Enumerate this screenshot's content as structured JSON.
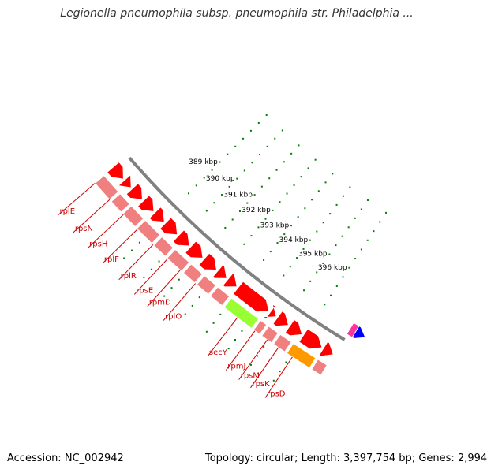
{
  "title": "Legionella pneumophila subsp. pneumophila str. Philadelphia ...",
  "footer": {
    "accession_label": "Accession:",
    "accession": "NC_002942",
    "topology_label": "Topology:",
    "topology": "circular",
    "length_label": "Length:",
    "length": "3,397,754 bp",
    "genes_label": "Genes:",
    "genes": "2,994"
  },
  "scale": {
    "unit": "kbp",
    "ticks": [
      {
        "value": 389,
        "label": "389 kbp"
      },
      {
        "value": 390,
        "label": "390 kbp"
      },
      {
        "value": 391,
        "label": "391 kbp"
      },
      {
        "value": 392,
        "label": "392 kbp"
      },
      {
        "value": 393,
        "label": "393 kbp"
      },
      {
        "value": 394,
        "label": "394 kbp"
      },
      {
        "value": 395,
        "label": "395 kbp"
      },
      {
        "value": 396,
        "label": "396 kbp"
      }
    ]
  },
  "gene_labels": [
    "rplE",
    "rpsN",
    "rpsH",
    "rplF",
    "rplR",
    "rpsE",
    "rpmD",
    "rplO",
    "secY",
    "rpmJ",
    "rpsM",
    "rpsK",
    "rpsD"
  ],
  "colors": {
    "cds_arrow": "#ff0000",
    "feature_default": "#f08080",
    "secY": "#99ff33",
    "highlight": "#ff9900",
    "backbone": "#808080",
    "tick": "#008000",
    "label": "#cc0000",
    "pink_feature": "#ff3399",
    "blue_feature": "#0000ff"
  }
}
